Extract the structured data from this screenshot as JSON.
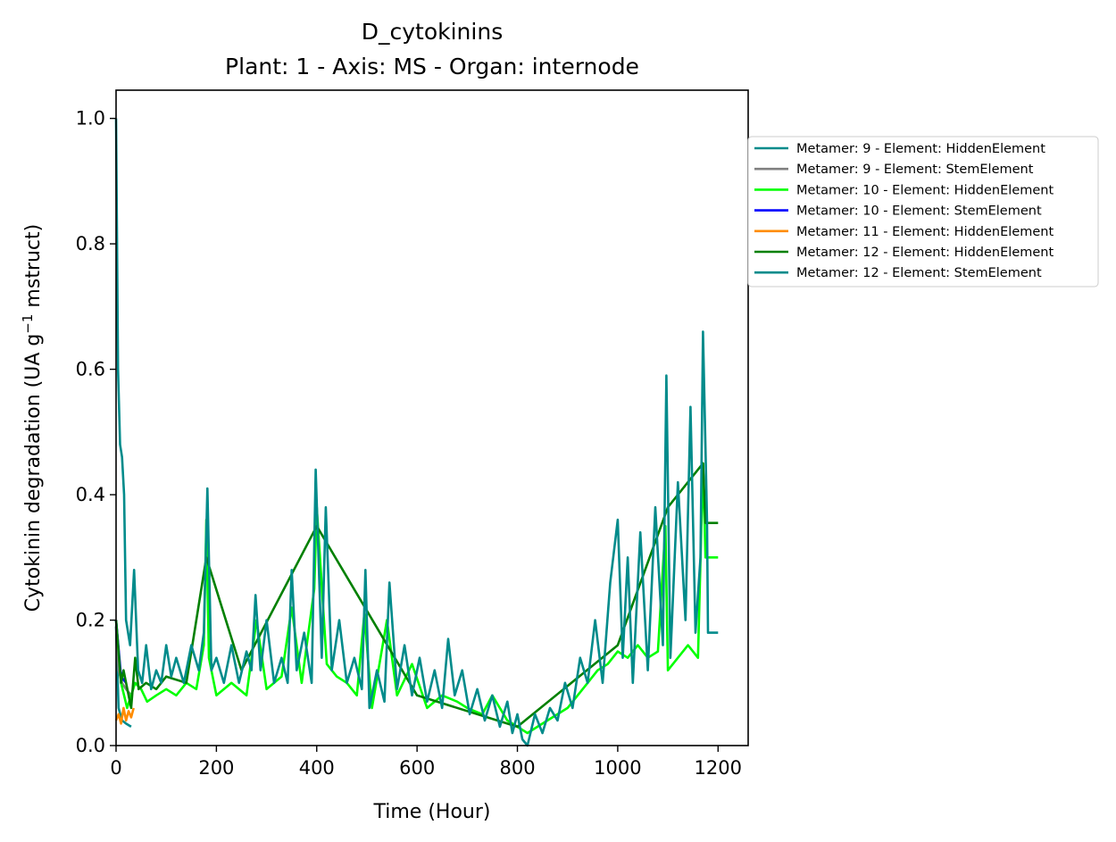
{
  "chart_data": {
    "type": "line",
    "title": "D_cytokinins",
    "subtitle": "Plant: 1 - Axis: MS - Organ: internode",
    "xlabel": "Time (Hour)",
    "ylabel_main": "Cytokinin degradation (UA g",
    "ylabel_sup": "−1",
    "ylabel_tail": " mstruct)",
    "xlim": [
      0,
      1260
    ],
    "ylim": [
      0,
      1.045
    ],
    "xticks": [
      0,
      200,
      400,
      600,
      800,
      1000,
      1200
    ],
    "xtick_labels": [
      "0",
      "200",
      "400",
      "600",
      "800",
      "1000",
      "1200"
    ],
    "yticks": [
      0.0,
      0.2,
      0.4,
      0.6,
      0.8,
      1.0
    ],
    "ytick_labels": [
      "0.0",
      "0.2",
      "0.4",
      "0.6",
      "0.8",
      "1.0"
    ],
    "grid": false,
    "legend_position": "outside-right",
    "series": [
      {
        "name": "Metamer: 9 - Element: HiddenElement",
        "color": "#008b8b",
        "x": [
          0,
          5,
          12,
          20,
          30
        ],
        "y": [
          0.19,
          0.06,
          0.04,
          0.035,
          0.03
        ]
      },
      {
        "name": "Metamer: 9 - Element: StemElement",
        "color": "#808080",
        "x": [
          0,
          5,
          12,
          20,
          30
        ],
        "y": [
          0.19,
          0.12,
          0.1,
          0.09,
          0.08
        ]
      },
      {
        "name": "Metamer: 10 - Element: HiddenElement",
        "color": "#00ff00",
        "x": [
          0,
          10,
          22,
          38,
          50,
          62,
          80,
          100,
          120,
          140,
          160,
          175,
          180,
          185,
          200,
          230,
          260,
          280,
          300,
          330,
          350,
          370,
          395,
          400,
          420,
          440,
          460,
          480,
          495,
          510,
          540,
          560,
          590,
          620,
          650,
          680,
          700,
          730,
          750,
          780,
          800,
          820,
          840,
          860,
          880,
          900,
          920,
          940,
          960,
          980,
          1000,
          1020,
          1040,
          1060,
          1080,
          1095,
          1100,
          1120,
          1140,
          1160,
          1170,
          1175,
          1180,
          1200
        ],
        "y": [
          0.2,
          0.1,
          0.06,
          0.1,
          0.09,
          0.07,
          0.08,
          0.09,
          0.08,
          0.1,
          0.09,
          0.16,
          0.36,
          0.14,
          0.08,
          0.1,
          0.08,
          0.2,
          0.09,
          0.11,
          0.22,
          0.1,
          0.25,
          0.38,
          0.13,
          0.11,
          0.1,
          0.08,
          0.21,
          0.06,
          0.2,
          0.08,
          0.13,
          0.06,
          0.08,
          0.07,
          0.06,
          0.05,
          0.08,
          0.04,
          0.03,
          0.02,
          0.03,
          0.04,
          0.05,
          0.06,
          0.08,
          0.1,
          0.12,
          0.13,
          0.15,
          0.14,
          0.16,
          0.14,
          0.15,
          0.35,
          0.12,
          0.14,
          0.16,
          0.14,
          0.45,
          0.3,
          0.3,
          0.3
        ]
      },
      {
        "name": "Metamer: 10 - Element: StemElement",
        "color": "#0000ff",
        "x": [
          0,
          10,
          20
        ],
        "y": [
          0.2,
          0.11,
          0.1
        ]
      },
      {
        "name": "Metamer: 11 - Element: HiddenElement",
        "color": "#ff8c00",
        "x": [
          0,
          5,
          10,
          15,
          20,
          25,
          30,
          35
        ],
        "y": [
          0.04,
          0.05,
          0.035,
          0.06,
          0.04,
          0.055,
          0.045,
          0.06
        ]
      },
      {
        "name": "Metamer: 12 - Element: HiddenElement",
        "color": "#008000",
        "x": [
          0,
          10,
          15,
          20,
          30,
          38,
          45,
          60,
          80,
          100,
          140,
          180,
          250,
          400,
          600,
          800,
          1000,
          1100,
          1170,
          1175,
          1200
        ],
        "y": [
          0.2,
          0.1,
          0.12,
          0.1,
          0.06,
          0.14,
          0.09,
          0.1,
          0.09,
          0.11,
          0.1,
          0.3,
          0.12,
          0.35,
          0.08,
          0.03,
          0.16,
          0.38,
          0.45,
          0.355,
          0.355
        ]
      },
      {
        "name": "Metamer: 12 - Element: StemElement",
        "color": "#008b8b",
        "x": [
          0,
          4,
          8,
          12,
          16,
          20,
          28,
          36,
          44,
          52,
          60,
          70,
          80,
          90,
          100,
          110,
          120,
          135,
          150,
          165,
          175,
          182,
          190,
          200,
          215,
          230,
          245,
          260,
          270,
          278,
          288,
          300,
          315,
          330,
          342,
          350,
          360,
          375,
          390,
          398,
          410,
          418,
          430,
          445,
          460,
          475,
          490,
          497,
          505,
          520,
          535,
          545,
          560,
          575,
          590,
          605,
          620,
          635,
          650,
          662,
          675,
          690,
          705,
          720,
          735,
          750,
          765,
          780,
          790,
          800,
          810,
          820,
          835,
          850,
          865,
          880,
          895,
          910,
          925,
          940,
          955,
          970,
          985,
          1000,
          1010,
          1020,
          1030,
          1045,
          1060,
          1075,
          1090,
          1097,
          1105,
          1120,
          1135,
          1145,
          1155,
          1165,
          1170,
          1178,
          1180,
          1200
        ],
        "y": [
          1.0,
          0.6,
          0.48,
          0.46,
          0.4,
          0.2,
          0.16,
          0.28,
          0.12,
          0.1,
          0.16,
          0.09,
          0.12,
          0.1,
          0.16,
          0.11,
          0.14,
          0.1,
          0.16,
          0.12,
          0.18,
          0.41,
          0.12,
          0.14,
          0.1,
          0.16,
          0.1,
          0.15,
          0.12,
          0.24,
          0.12,
          0.2,
          0.1,
          0.14,
          0.1,
          0.28,
          0.12,
          0.18,
          0.1,
          0.44,
          0.14,
          0.38,
          0.12,
          0.2,
          0.1,
          0.14,
          0.09,
          0.28,
          0.06,
          0.12,
          0.07,
          0.26,
          0.09,
          0.16,
          0.08,
          0.14,
          0.07,
          0.12,
          0.06,
          0.17,
          0.08,
          0.12,
          0.05,
          0.09,
          0.04,
          0.08,
          0.03,
          0.07,
          0.02,
          0.05,
          0.01,
          0.0,
          0.05,
          0.02,
          0.06,
          0.04,
          0.1,
          0.06,
          0.14,
          0.1,
          0.2,
          0.1,
          0.26,
          0.36,
          0.14,
          0.3,
          0.1,
          0.34,
          0.12,
          0.38,
          0.16,
          0.59,
          0.14,
          0.42,
          0.2,
          0.54,
          0.18,
          0.3,
          0.66,
          0.36,
          0.18,
          0.18
        ]
      }
    ]
  }
}
